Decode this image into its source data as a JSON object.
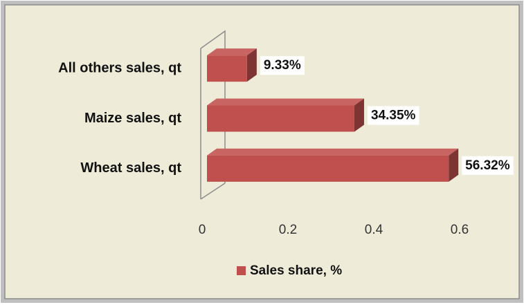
{
  "chart_data": {
    "type": "bar3d_horizontal",
    "categories": [
      "All others sales, qt",
      "Maize sales, qt",
      "Wheat sales, qt"
    ],
    "series": [
      {
        "name": "Sales share, %",
        "color": "#c0504d",
        "values": [
          0.0933,
          0.3435,
          0.5632
        ],
        "value_labels": [
          "9.33%",
          "34.35%",
          "56.32%"
        ]
      }
    ],
    "xlim": [
      0,
      0.6
    ],
    "xticks": [
      0,
      0.2,
      0.4,
      0.6
    ],
    "legend": "bottom"
  }
}
